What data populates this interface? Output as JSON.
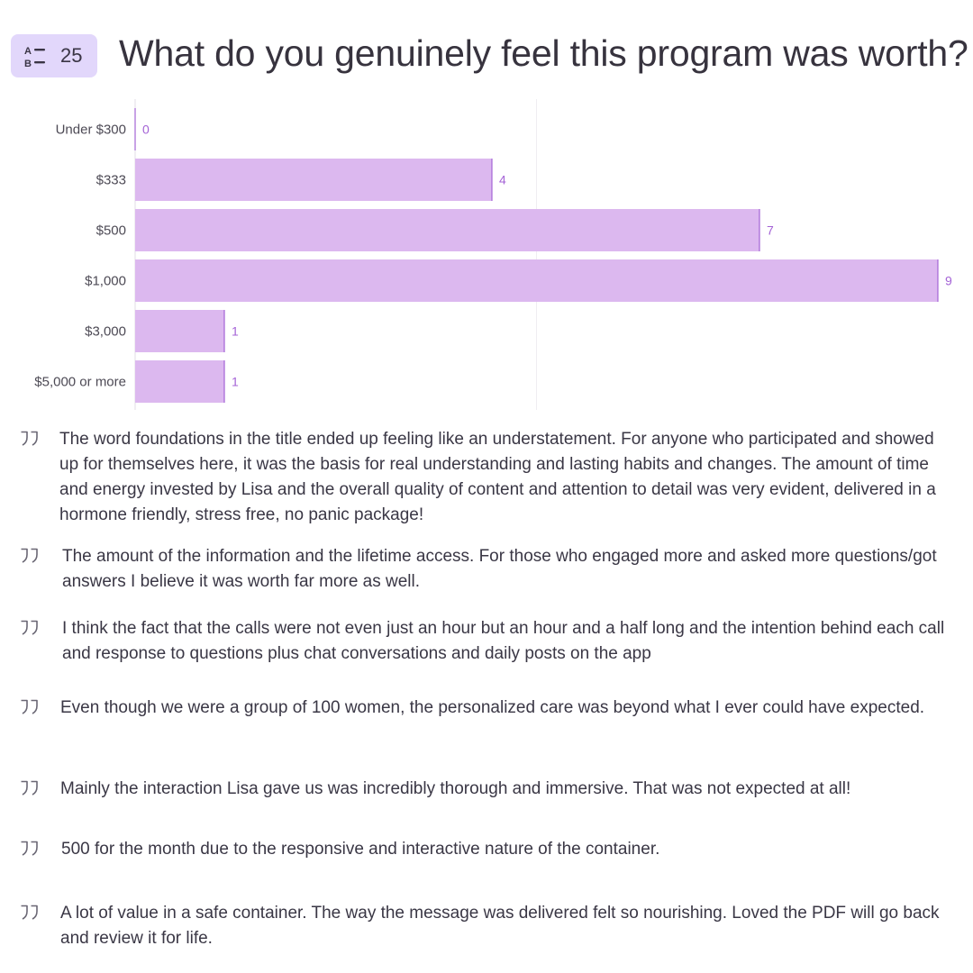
{
  "question": {
    "number": "25",
    "title": "What do you genuinely feel this program was worth?",
    "icon": "multiple-choice-icon",
    "badge_color": "#e2d7fb"
  },
  "chart_data": {
    "type": "bar",
    "orientation": "horizontal",
    "categories": [
      "Under $300",
      "$333",
      "$500",
      "$1,000",
      "$3,000",
      "$5,000 or more"
    ],
    "values": [
      0,
      4,
      7,
      9,
      1,
      1
    ],
    "xlim": [
      0,
      9
    ],
    "grid": true,
    "bar_color": "#dcb8ef",
    "bar_edge_color": "#a463d6",
    "label_color": "#a463d6"
  },
  "comments": [
    "The word foundations in the title ended up feeling like an understatement. For anyone who participated and showed up for themselves here, it was the basis for real understanding and lasting habits and changes. The amount of time and energy invested by Lisa and the overall quality of content and attention to detail was very evident, delivered in a hormone friendly, stress free, no panic package!",
    "The amount of the information and the lifetime access. For those who engaged more and asked more questions/got answers I believe it was worth far more as well.",
    "I think the fact that the calls were not even just an hour but an hour and a half long and the intention behind each call and response to questions plus chat conversations and daily posts on the app",
    "Even though we were a group of 100 women, the personalized care was beyond what I ever could have expected.",
    "Mainly the interaction Lisa gave us was incredibly thorough and immersive. That was not expected at all!",
    "500 for the month due to the responsive and interactive nature of the container.",
    "A lot of value in a safe container. The way the message was delivered felt so nourishing. Loved the PDF will go back and review it for life."
  ]
}
